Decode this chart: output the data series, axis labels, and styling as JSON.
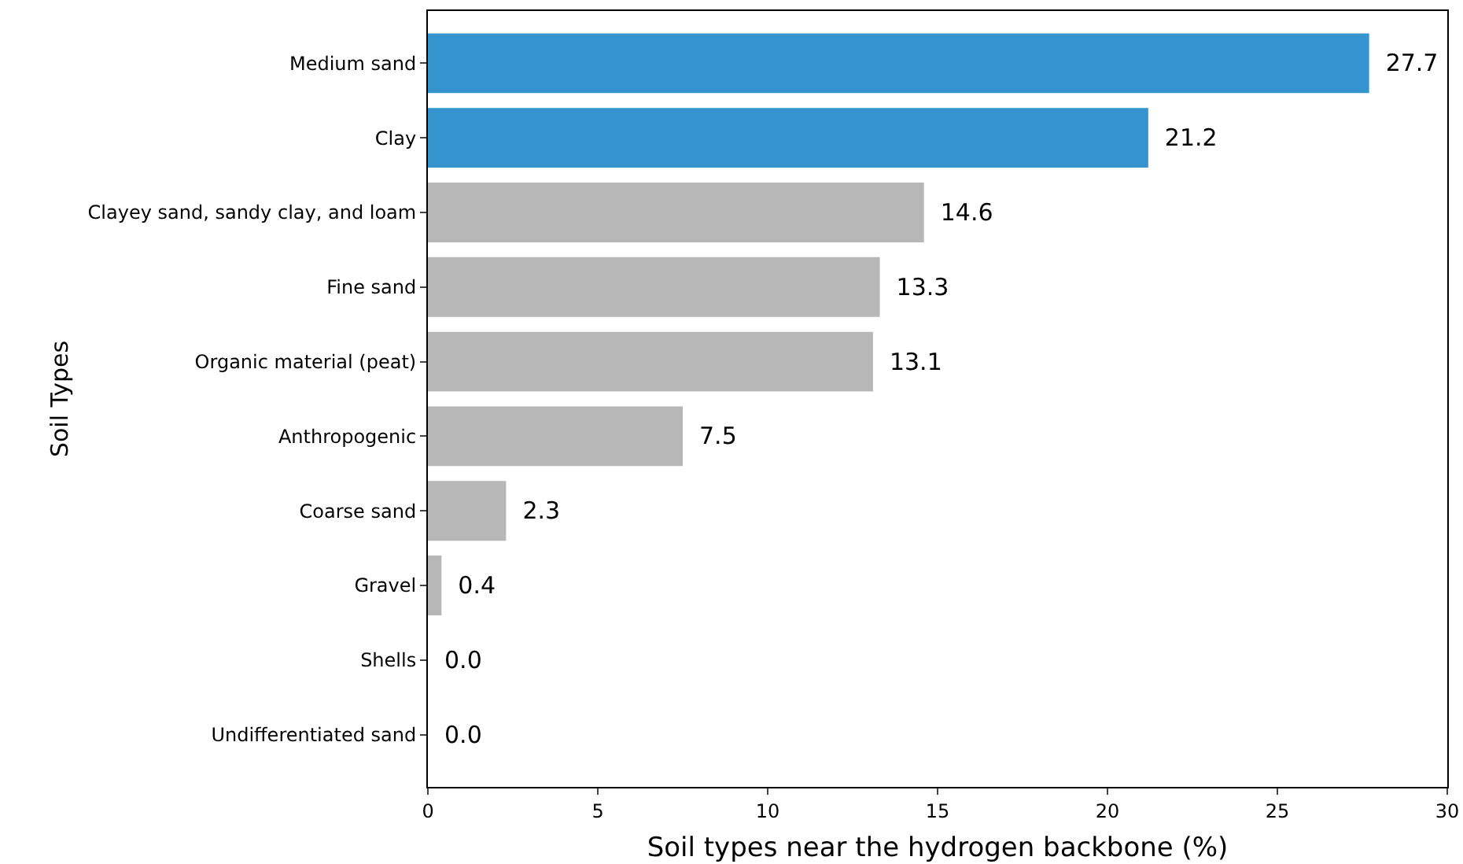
{
  "chart_data": {
    "type": "bar",
    "orientation": "horizontal",
    "xlabel": "Soil types near the hydrogen backbone (%)",
    "ylabel": "Soil Types",
    "categories": [
      "Medium sand",
      "Clay",
      "Clayey sand, sandy clay, and loam",
      "Fine sand",
      "Organic material (peat)",
      "Anthropogenic",
      "Coarse sand",
      "Gravel",
      "Shells",
      "Undifferentiated sand"
    ],
    "values": [
      27.7,
      21.2,
      14.6,
      13.3,
      13.1,
      7.5,
      2.3,
      0.4,
      0,
      0
    ],
    "value_labels": [
      "27.7",
      "21.2",
      "14.6",
      "13.3",
      "13.1",
      "7.5",
      "2.3",
      "0.4",
      "0.0",
      "0.0"
    ],
    "colors": [
      "#3593cd",
      "#3593cd",
      "#b7b7b7",
      "#b7b7b7",
      "#b7b7b7",
      "#b7b7b7",
      "#b7b7b7",
      "#b7b7b7",
      "#b7b7b7",
      "#b7b7b7"
    ],
    "xlim": [
      0,
      30
    ],
    "xticks": [
      0,
      5,
      10,
      15,
      20,
      25,
      30
    ],
    "grid": false
  }
}
